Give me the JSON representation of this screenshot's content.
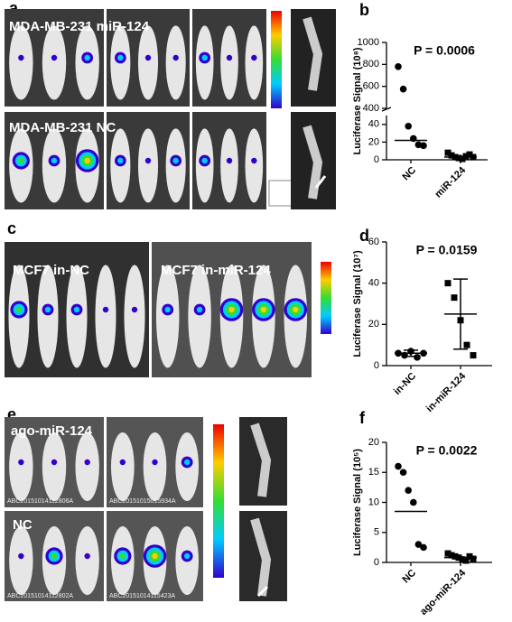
{
  "panel_labels": [
    "a",
    "b",
    "c",
    "d",
    "e",
    "f"
  ],
  "photo_labels": [
    "MDA-MB-231 miR-124",
    "MDA-MB-231 NC",
    "MCF7 in-NC",
    "MCF7 in-miR-124",
    "ago-miR-124",
    "NC"
  ],
  "photo_ids": [
    "ABC20151014112806A",
    "ABC20151015015934A",
    "ABC20151014112802A",
    "ABC20151014115423A"
  ],
  "chart_data": [
    {
      "type": "dot",
      "ylabel": "Luciferase Signal (10⁸)",
      "annotation": "P = 0.0006",
      "categories": [
        "NC",
        "miR-124"
      ],
      "values": [
        [
          780,
          575,
          38,
          24,
          17,
          16
        ],
        [
          8,
          5,
          3,
          2,
          1,
          4,
          6,
          3
        ]
      ],
      "markers": [
        "circle",
        "square"
      ],
      "center": [
        22,
        3
      ],
      "y_segments": [
        {
          "ylim": [
            0,
            50
          ],
          "yticks": [
            0,
            20,
            40
          ]
        },
        {
          "ylim": [
            400,
            1000
          ],
          "yticks": [
            400,
            600,
            800,
            1000
          ]
        }
      ]
    },
    {
      "type": "dot",
      "ylabel": "Luciferase Signal (10⁷)",
      "annotation": "P = 0.0159",
      "categories": [
        "in-NC",
        "in-miR-124"
      ],
      "values": [
        [
          6,
          5,
          7,
          4,
          6
        ],
        [
          40,
          33,
          22,
          10,
          5
        ]
      ],
      "markers": [
        "circle",
        "square"
      ],
      "center": [
        6,
        25
      ],
      "error_low": [
        4.5,
        8
      ],
      "error_high": [
        7.5,
        42
      ],
      "ylim": [
        0,
        60
      ],
      "yticks": [
        0,
        20,
        40,
        60
      ]
    },
    {
      "type": "dot",
      "ylabel": "Luciferase Signal (10⁵)",
      "annotation": "P = 0.0022",
      "categories": [
        "NC",
        "ago-miR-124"
      ],
      "values": [
        [
          16,
          15,
          12,
          10,
          3,
          2.5
        ],
        [
          1.5,
          1.2,
          1,
          0.8,
          0.5,
          0.3,
          1,
          0.6
        ]
      ],
      "markers": [
        "circle",
        "square"
      ],
      "center": [
        8.5,
        0.8
      ],
      "ylim": [
        0,
        20
      ],
      "yticks": [
        0,
        5,
        10,
        15,
        20
      ]
    }
  ]
}
